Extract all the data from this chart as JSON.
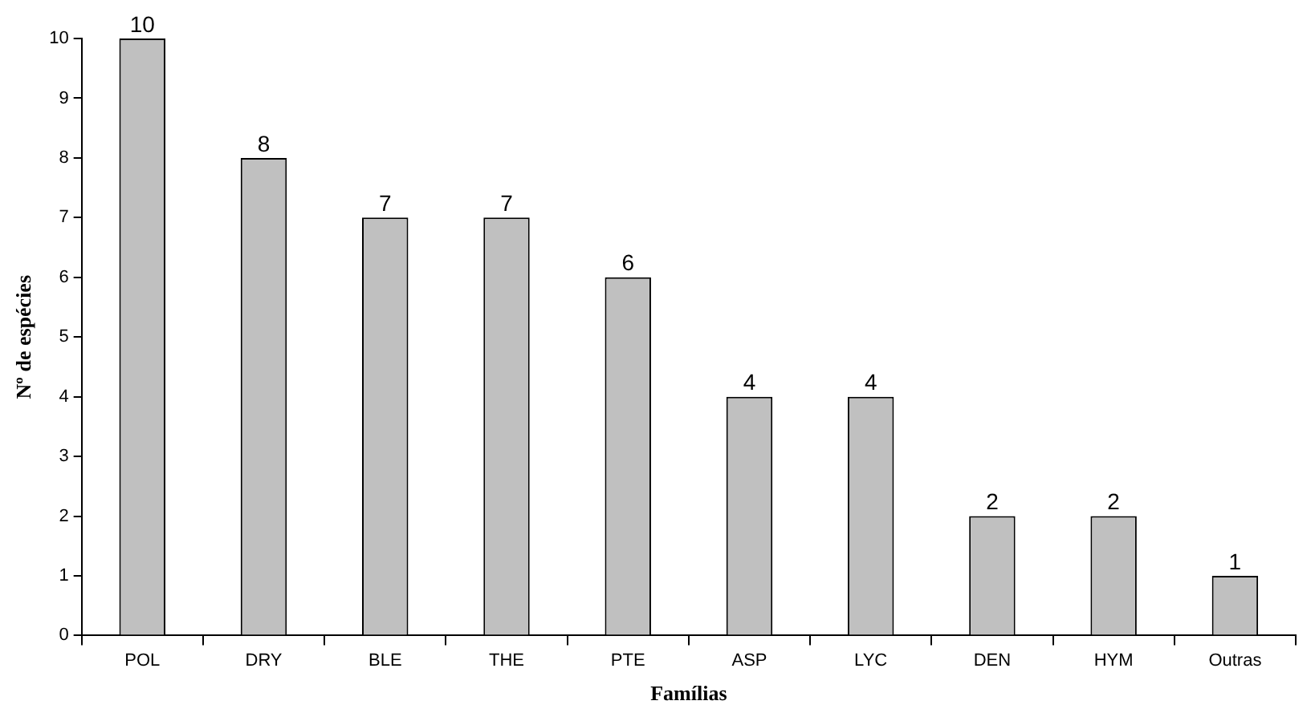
{
  "chart_data": {
    "type": "bar",
    "xlabel": "Famílias",
    "ylabel": "Nº de espécies",
    "categories": [
      "POL",
      "DRY",
      "BLE",
      "THE",
      "PTE",
      "ASP",
      "LYC",
      "DEN",
      "HYM",
      "Outras"
    ],
    "values": [
      10,
      8,
      7,
      7,
      6,
      4,
      4,
      2,
      2,
      1
    ],
    "color": "#c0c0c0",
    "ylim": [
      0,
      10
    ],
    "yticks": [
      0,
      1,
      2,
      3,
      4,
      5,
      6,
      7,
      8,
      9,
      10
    ],
    "data_labels": true,
    "grid": false
  }
}
